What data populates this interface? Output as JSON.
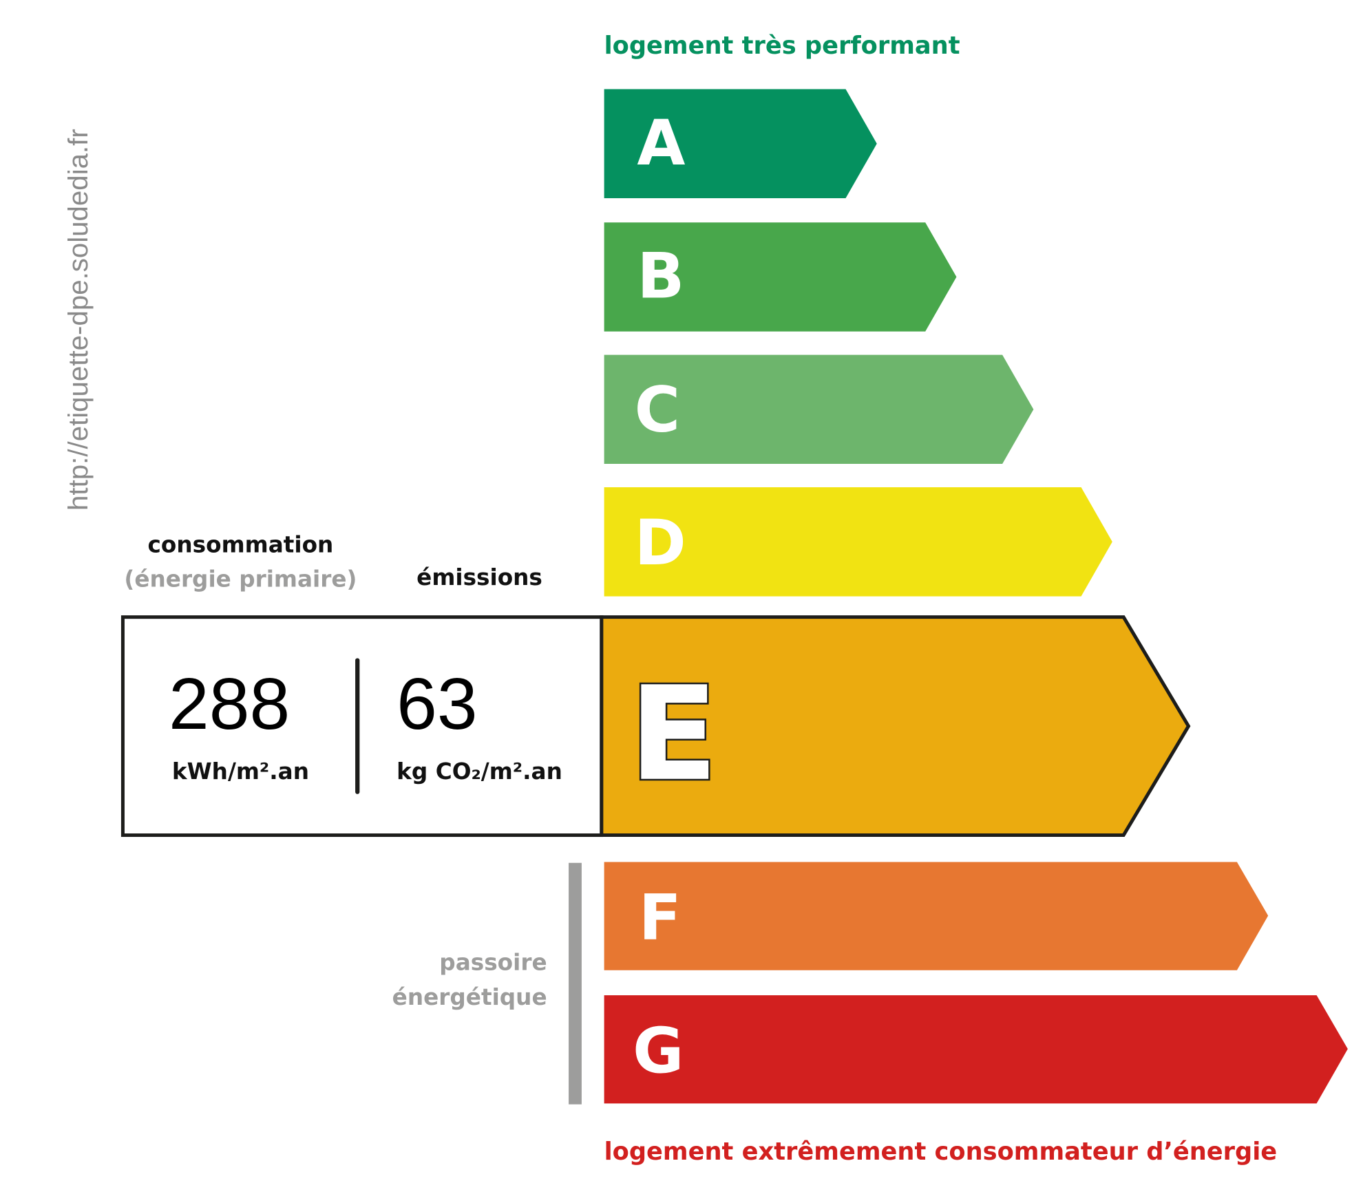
{
  "watermark": "http://etiquette-dpe.soludedia.fr",
  "top_label": "logement très performant",
  "bottom_label": "logement extrêmement consommateur d’énergie",
  "consumption": {
    "title": "consommation",
    "subtitle": "(énergie primaire)",
    "value": "288",
    "unit": "kWh/m².an"
  },
  "emissions": {
    "title": "émissions",
    "value": "63",
    "unit": "kg CO₂/m².an"
  },
  "passoire": {
    "line1": "passoire",
    "line2": "énergétique"
  },
  "current_class": "E",
  "classes": [
    {
      "letter": "A",
      "color": "#05915f"
    },
    {
      "letter": "B",
      "color": "#48a74b"
    },
    {
      "letter": "C",
      "color": "#6db56c"
    },
    {
      "letter": "D",
      "color": "#f1e312"
    },
    {
      "letter": "E",
      "color": "#ebab0f"
    },
    {
      "letter": "F",
      "color": "#e77731"
    },
    {
      "letter": "G",
      "color": "#d2201f"
    }
  ],
  "colors": {
    "top_label": "#05915f",
    "bottom_label": "#d2201f",
    "gray": "#9d9d9c"
  }
}
